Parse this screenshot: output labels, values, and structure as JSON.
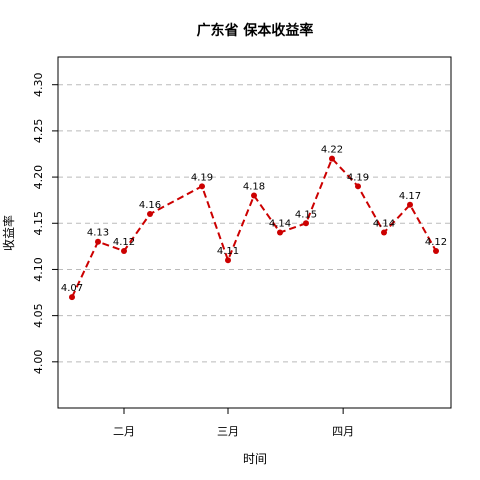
{
  "chart_data": {
    "type": "line",
    "title": "广东省 保本收益率",
    "xlabel": "时间",
    "ylabel": "收益率",
    "ylim": [
      3.95,
      4.33
    ],
    "y_ticks": [
      4.0,
      4.05,
      4.1,
      4.15,
      4.2,
      4.25,
      4.3
    ],
    "x_ticks": [
      "二月",
      "三月",
      "四月"
    ],
    "grid": true,
    "series_color": "#cc0000",
    "grid_color": "#bbbbbb",
    "points": [
      {
        "date": "2015-01-18",
        "value": 4.07,
        "label": "4.07"
      },
      {
        "date": "2015-01-25",
        "value": 4.13,
        "label": "4.13"
      },
      {
        "date": "2015-02-01",
        "value": 4.12,
        "label": "4.12"
      },
      {
        "date": "2015-02-08",
        "value": 4.16,
        "label": "4.16"
      },
      {
        "date": "2015-02-22",
        "value": 4.19,
        "label": "4.19"
      },
      {
        "date": "2015-03-01",
        "value": 4.11,
        "label": "4.11"
      },
      {
        "date": "2015-03-08",
        "value": 4.18,
        "label": "4.18"
      },
      {
        "date": "2015-03-15",
        "value": 4.14,
        "label": "4.14"
      },
      {
        "date": "2015-03-22",
        "value": 4.15,
        "label": "4.15"
      },
      {
        "date": "2015-03-29",
        "value": 4.22,
        "label": "4.22"
      },
      {
        "date": "2015-04-05",
        "value": 4.19,
        "label": "4.19"
      },
      {
        "date": "2015-04-12",
        "value": 4.14,
        "label": "4.14"
      },
      {
        "date": "2015-04-19",
        "value": 4.17,
        "label": "4.17"
      },
      {
        "date": "2015-04-26",
        "value": 4.12,
        "label": "4.12"
      }
    ]
  }
}
